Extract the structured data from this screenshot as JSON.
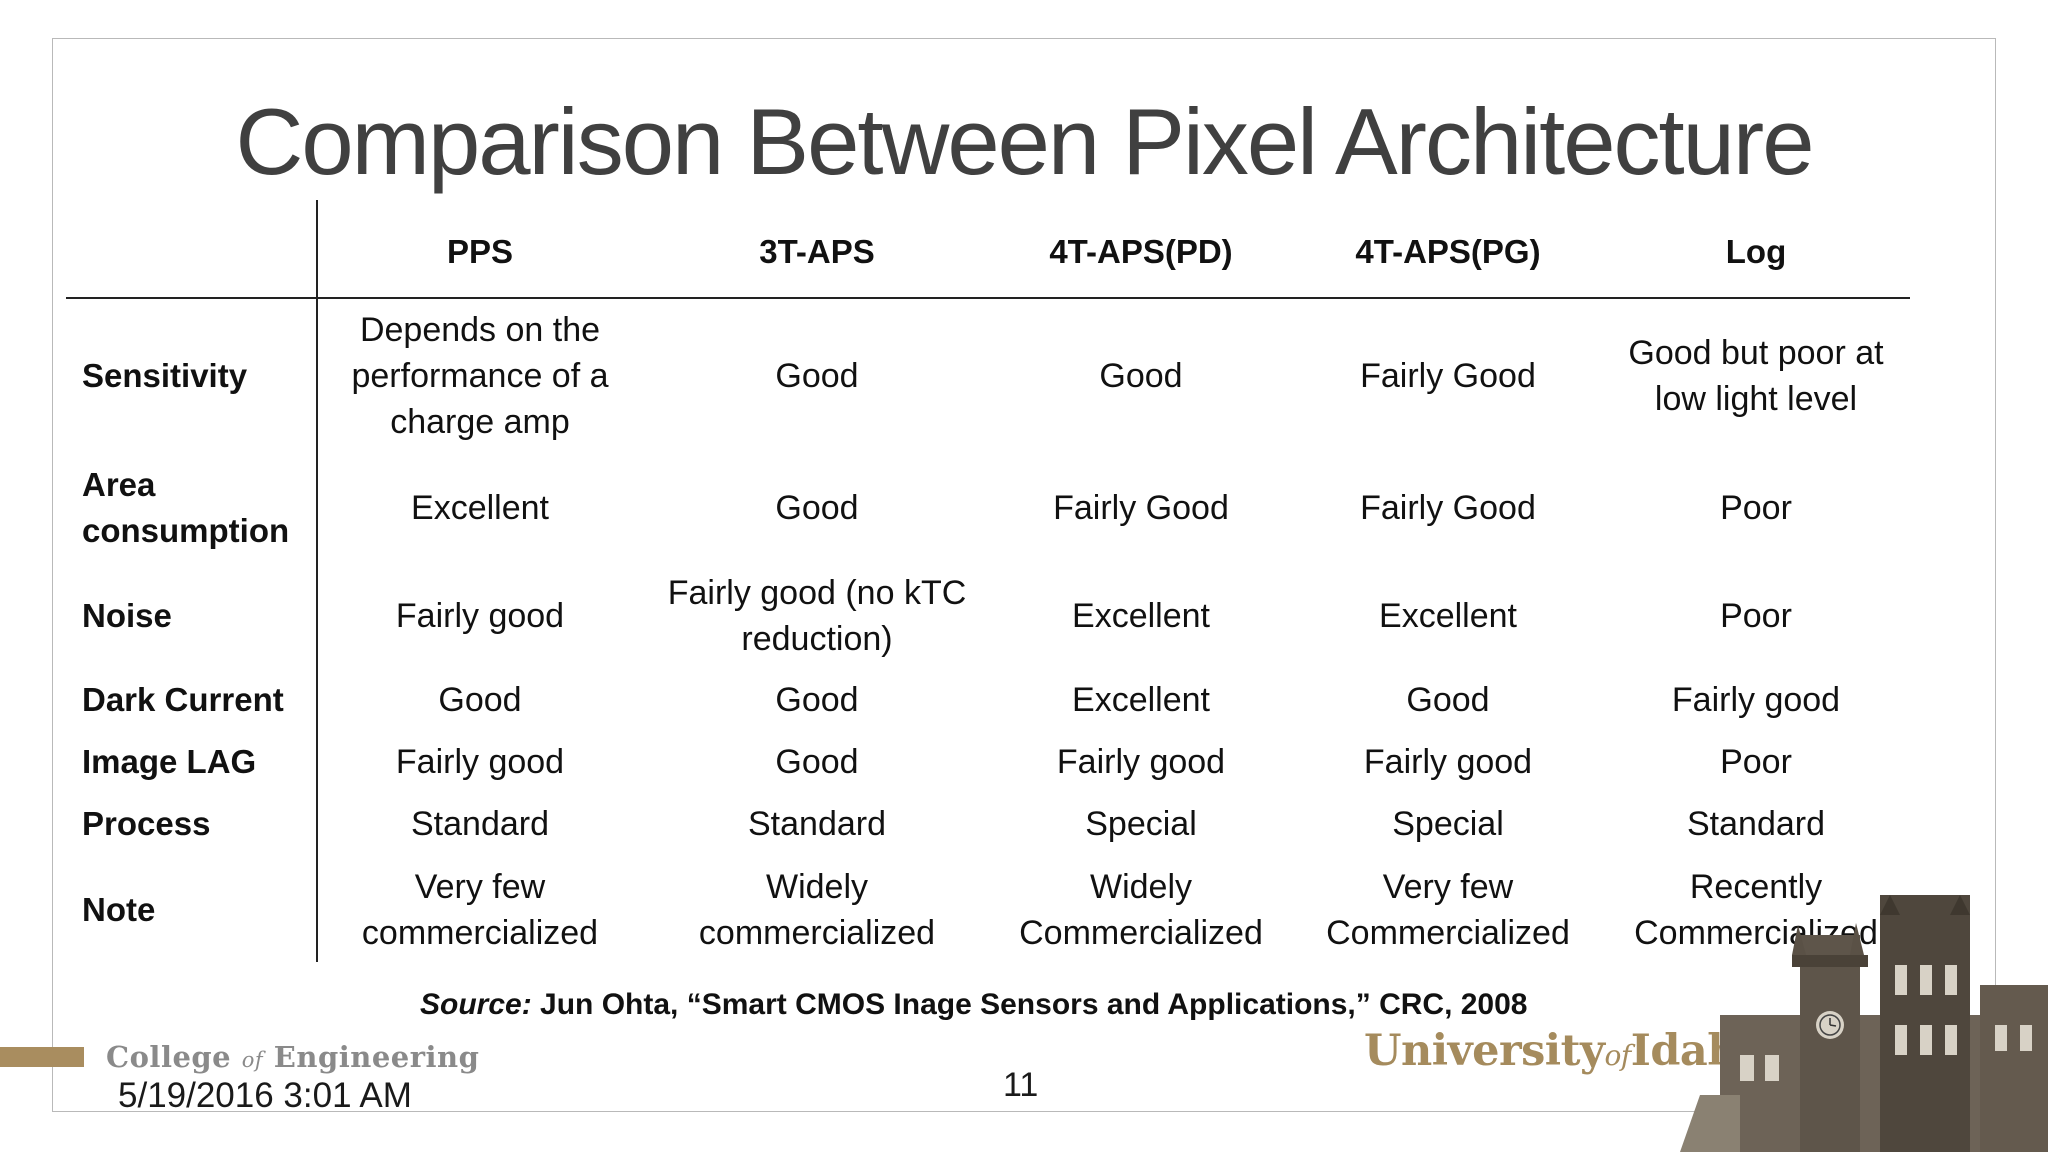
{
  "title": "Comparison Between Pixel Architecture",
  "table": {
    "columns": [
      "PPS",
      "3T-APS",
      "4T-APS(PD)",
      "4T-APS(PG)",
      "Log"
    ],
    "rows": [
      {
        "label": "Sensitivity",
        "cells": [
          "Depends on the performance of a charge amp",
          "Good",
          "Good",
          "Fairly Good",
          "Good but poor at low light level"
        ]
      },
      {
        "label": "Area consumption",
        "cells": [
          "Excellent",
          "Good",
          "Fairly Good",
          "Fairly Good",
          "Poor"
        ]
      },
      {
        "label": "Noise",
        "cells": [
          "Fairly good",
          "Fairly good (no kTC reduction)",
          "Excellent",
          "Excellent",
          "Poor"
        ]
      },
      {
        "label": "Dark Current",
        "cells": [
          "Good",
          "Good",
          "Excellent",
          "Good",
          "Fairly good"
        ]
      },
      {
        "label": "Image LAG",
        "cells": [
          "Fairly good",
          "Good",
          "Fairly good",
          "Fairly good",
          "Poor"
        ]
      },
      {
        "label": "Process",
        "cells": [
          "Standard",
          "Standard",
          "Special",
          "Special",
          "Standard"
        ]
      },
      {
        "label": "Note",
        "cells": [
          "Very few commercialized",
          "Widely commercialized",
          "Widely Commercialized",
          "Very few Commercialized",
          "Recently Commercialized"
        ]
      }
    ]
  },
  "source": {
    "label": "Source:",
    "text": "Jun Ohta, “Smart CMOS Inage Sensors and Applications,” CRC, 2008"
  },
  "footer": {
    "college": {
      "pre": "College ",
      "of": "of",
      "post": " Engineering"
    },
    "date": "5/19/2016 3:01 AM",
    "page_number": "11",
    "university": {
      "pre": "University",
      "of": "of",
      "post": "Idaho"
    }
  },
  "colors": {
    "title": "#404040",
    "accent_gold": "#a98d5f",
    "college_gray": "#8a8a8a"
  },
  "icons": {
    "building": "university-building-image"
  }
}
